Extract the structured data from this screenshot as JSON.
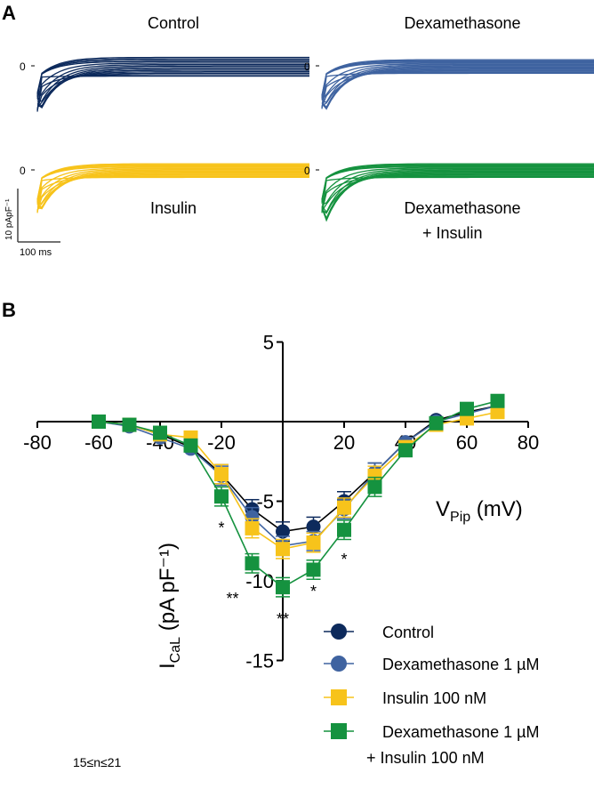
{
  "panel_a": {
    "label": "A",
    "traces": [
      {
        "title": "Control",
        "color": "#0d2a5c",
        "zero_label": "0",
        "peak": -11
      },
      {
        "title": "Dexamethasone",
        "color": "#3f63a0",
        "zero_label": "0",
        "peak": -11.5
      },
      {
        "title": "Insulin",
        "color": "#f7c31b",
        "zero_label": "0",
        "peak": -10
      },
      {
        "title": "Dexamethasone",
        "title2": "+ Insulin",
        "color": "#15923f",
        "zero_label": "0",
        "peak": -14
      }
    ],
    "scale_y": "10 pApF⁻¹",
    "scale_x": "100 ms"
  },
  "chart_data": {
    "type": "line",
    "panel_label": "B",
    "xlabel": "V",
    "xlabel_sub": "Pip",
    "xlabel_unit": " (mV)",
    "ylabel": "I",
    "ylabel_sub": "CaL",
    "ylabel_unit": " (pA pF⁻¹)",
    "xlim": [
      -80,
      80
    ],
    "ylim": [
      -15,
      5
    ],
    "xticks": [
      -80,
      -60,
      -40,
      -20,
      20,
      40,
      60,
      80
    ],
    "yticks": [
      5,
      -5,
      -10,
      -15
    ],
    "x": [
      -60,
      -50,
      -40,
      -30,
      -20,
      -10,
      0,
      10,
      20,
      30,
      40,
      50,
      60,
      70
    ],
    "series": [
      {
        "name": "Control",
        "color": "#0d2a5c",
        "marker": "circle",
        "values": [
          0,
          -0.2,
          -0.8,
          -1.6,
          -3.3,
          -5.5,
          -6.9,
          -6.6,
          -5.0,
          -3.2,
          -1.3,
          0.1,
          0.6,
          1.0
        ]
      },
      {
        "name": "Dexamethasone 1 µM",
        "color": "#3f63a0",
        "marker": "circle",
        "values": [
          0,
          -0.3,
          -1.0,
          -1.7,
          -3.4,
          -6.0,
          -7.8,
          -7.5,
          -5.5,
          -3.2,
          -1.3,
          0,
          0.5,
          1.0
        ]
      },
      {
        "name": "Insulin 100 nM",
        "color": "#f7c31b",
        "marker": "square",
        "values": [
          0,
          -0.2,
          -0.8,
          -1.0,
          -3.3,
          -6.7,
          -8.0,
          -7.6,
          -5.4,
          -3.4,
          -1.6,
          -0.2,
          0.2,
          0.6
        ]
      },
      {
        "name": "Dexamethasone 1 µM",
        "name2": "+ Insulin 100 nM",
        "color": "#15923f",
        "marker": "square",
        "values": [
          0,
          -0.2,
          -0.7,
          -1.5,
          -4.7,
          -8.9,
          -10.4,
          -9.3,
          -6.8,
          -4.1,
          -1.8,
          -0.1,
          0.8,
          1.3
        ]
      }
    ],
    "error": 0.6,
    "significance": [
      {
        "x": -20,
        "y": -7.0,
        "text": "*"
      },
      {
        "x": -10,
        "y": -11.0,
        "text": "**"
      },
      {
        "x": 0,
        "y": -12.3,
        "text": "**"
      },
      {
        "x": 10,
        "y": -11.0,
        "text": "*"
      },
      {
        "x": 20,
        "y": -9.0,
        "text": "*"
      }
    ],
    "legend_position": "bottom-right",
    "note": "15≤n≤21"
  }
}
